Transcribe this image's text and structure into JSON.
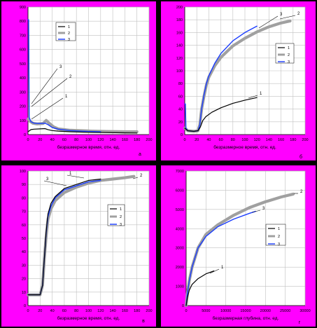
{
  "colors": {
    "panel_bg": "#ff00ff",
    "plot_bg": "#ffffff",
    "grid": "#c0c0c0",
    "axis": "#000000",
    "series_1": "#000000",
    "series_2": "#a0a0a0",
    "series_3": "#1a3cff"
  },
  "chart_data": [
    {
      "id": "a",
      "type": "line",
      "panel_label": "а",
      "xlabel": "безразмерное время, отн. ед.",
      "ylabel": "",
      "x_ticks": [
        0,
        20,
        40,
        60,
        80,
        100,
        120,
        140,
        160,
        180,
        200
      ],
      "y_ticks": [
        0,
        100,
        200,
        300,
        400,
        500,
        600,
        700,
        800,
        900
      ],
      "xlim": [
        0,
        200
      ],
      "ylim": [
        0,
        900
      ],
      "grid": true,
      "legend": {
        "position": "top-center",
        "entries": [
          "1",
          "2",
          "3"
        ]
      },
      "callouts": [
        "3",
        "2",
        "1"
      ],
      "series": [
        {
          "name": "1",
          "points": [
            [
              0,
              20
            ],
            [
              5,
              35
            ],
            [
              10,
              38
            ],
            [
              20,
              40
            ],
            [
              28,
              42
            ],
            [
              33,
              35
            ],
            [
              40,
              28
            ],
            [
              50,
              24
            ],
            [
              70,
              20
            ],
            [
              100,
              16
            ],
            [
              130,
              14
            ],
            [
              160,
              12
            ],
            [
              180,
              11
            ]
          ]
        },
        {
          "name": "2",
          "points": [
            [
              0,
              110
            ],
            [
              3,
              95
            ],
            [
              8,
              80
            ],
            [
              15,
              75
            ],
            [
              25,
              78
            ],
            [
              30,
              100
            ],
            [
              35,
              80
            ],
            [
              42,
              55
            ],
            [
              50,
              40
            ],
            [
              70,
              30
            ],
            [
              100,
              25
            ],
            [
              130,
              22
            ],
            [
              160,
              20
            ],
            [
              180,
              20
            ]
          ]
        },
        {
          "name": "3",
          "points": [
            [
              0,
              810
            ],
            [
              1,
              810
            ],
            [
              2,
              120
            ],
            [
              5,
              90
            ],
            [
              10,
              80
            ],
            [
              20,
              78
            ],
            [
              28,
              80
            ],
            [
              33,
              70
            ],
            [
              40,
              50
            ],
            [
              50,
              38
            ],
            [
              70,
              28
            ],
            [
              100,
              22
            ],
            [
              120,
              20
            ]
          ]
        }
      ]
    },
    {
      "id": "b",
      "type": "line",
      "panel_label": "б",
      "xlabel": "безразмерное время, отн. ед.",
      "ylabel": "",
      "x_ticks": [
        0,
        20,
        40,
        60,
        80,
        100,
        120,
        140,
        160,
        180,
        200
      ],
      "y_ticks": [
        0,
        20,
        40,
        60,
        80,
        100,
        120,
        140,
        160,
        180,
        200
      ],
      "xlim": [
        0,
        200
      ],
      "ylim": [
        0,
        200
      ],
      "grid": true,
      "legend": {
        "position": "right",
        "entries": [
          "1",
          "2",
          "3"
        ]
      },
      "callouts": [
        "3",
        "2",
        "1"
      ],
      "series": [
        {
          "name": "1",
          "points": [
            [
              0,
              10
            ],
            [
              5,
              6
            ],
            [
              15,
              5
            ],
            [
              22,
              6
            ],
            [
              26,
              12
            ],
            [
              30,
              22
            ],
            [
              35,
              28
            ],
            [
              45,
              35
            ],
            [
              60,
              42
            ],
            [
              80,
              49
            ],
            [
              100,
              54
            ],
            [
              120,
              58
            ]
          ]
        },
        {
          "name": "2",
          "points": [
            [
              0,
              10
            ],
            [
              5,
              6
            ],
            [
              15,
              5
            ],
            [
              22,
              6
            ],
            [
              25,
              15
            ],
            [
              28,
              40
            ],
            [
              32,
              60
            ],
            [
              36,
              78
            ],
            [
              40,
              90
            ],
            [
              50,
              108
            ],
            [
              60,
              121
            ],
            [
              80,
              139
            ],
            [
              100,
              151
            ],
            [
              120,
              161
            ],
            [
              140,
              169
            ],
            [
              160,
              175
            ],
            [
              175,
              178
            ]
          ]
        },
        {
          "name": "3",
          "points": [
            [
              0,
              48
            ],
            [
              1,
              48
            ],
            [
              2,
              10
            ],
            [
              5,
              6
            ],
            [
              15,
              5
            ],
            [
              22,
              6
            ],
            [
              25,
              15
            ],
            [
              28,
              40
            ],
            [
              32,
              62
            ],
            [
              36,
              80
            ],
            [
              40,
              92
            ],
            [
              50,
              112
            ],
            [
              60,
              127
            ],
            [
              80,
              147
            ],
            [
              100,
              160
            ],
            [
              120,
              170
            ]
          ]
        }
      ]
    },
    {
      "id": "c",
      "type": "line",
      "panel_label": "в",
      "xlabel": "безразмерное время, отн. ед.",
      "ylabel": "",
      "x_ticks": [
        0,
        20,
        40,
        60,
        80,
        100,
        120,
        140,
        160,
        180,
        200
      ],
      "y_ticks": [
        0,
        10,
        20,
        30,
        40,
        50,
        60,
        70,
        80,
        90,
        100
      ],
      "xlim": [
        0,
        200
      ],
      "ylim": [
        0,
        100
      ],
      "grid": true,
      "legend": {
        "position": "right",
        "entries": [
          "1",
          "2",
          "3"
        ]
      },
      "callouts": [
        "1",
        "3",
        "2"
      ],
      "series": [
        {
          "name": "1",
          "points": [
            [
              0,
              8
            ],
            [
              10,
              8
            ],
            [
              20,
              8
            ],
            [
              24,
              15
            ],
            [
              27,
              35
            ],
            [
              30,
              55
            ],
            [
              33,
              68
            ],
            [
              38,
              76
            ],
            [
              45,
              81
            ],
            [
              60,
              87
            ],
            [
              80,
              90
            ],
            [
              100,
              93
            ],
            [
              120,
              94
            ]
          ]
        },
        {
          "name": "2",
          "points": [
            [
              0,
              8
            ],
            [
              10,
              8
            ],
            [
              20,
              8
            ],
            [
              24,
              15
            ],
            [
              27,
              35
            ],
            [
              30,
              52
            ],
            [
              33,
              64
            ],
            [
              38,
              72
            ],
            [
              45,
              78
            ],
            [
              60,
              84
            ],
            [
              80,
              88
            ],
            [
              100,
              91
            ],
            [
              120,
              93
            ],
            [
              140,
              94
            ],
            [
              160,
              95
            ],
            [
              175,
              96
            ]
          ]
        },
        {
          "name": "3",
          "points": [
            [
              0,
              8
            ],
            [
              10,
              8
            ],
            [
              20,
              8
            ],
            [
              24,
              15
            ],
            [
              27,
              35
            ],
            [
              30,
              54
            ],
            [
              33,
              66
            ],
            [
              38,
              74
            ],
            [
              45,
              80
            ],
            [
              60,
              86
            ],
            [
              80,
              89
            ],
            [
              100,
              92
            ],
            [
              120,
              93
            ]
          ]
        }
      ]
    },
    {
      "id": "d",
      "type": "line",
      "panel_label": "г",
      "xlabel": "безразмерная глубина, отн. ед.",
      "ylabel": "",
      "x_ticks": [
        0,
        5000,
        10000,
        15000,
        20000,
        25000,
        30000
      ],
      "y_ticks": [
        0,
        1000,
        2000,
        3000,
        4000,
        5000,
        6000,
        7000
      ],
      "xlim": [
        0,
        30000
      ],
      "ylim": [
        0,
        7000
      ],
      "grid": true,
      "legend": {
        "position": "right",
        "entries": [
          "1",
          "2",
          "3"
        ]
      },
      "callouts": [
        "2",
        "3",
        "1"
      ],
      "series": [
        {
          "name": "1",
          "points": [
            [
              0,
              0
            ],
            [
              300,
              400
            ],
            [
              800,
              800
            ],
            [
              1500,
              1100
            ],
            [
              3000,
              1400
            ],
            [
              5000,
              1650
            ],
            [
              7000,
              1800
            ]
          ]
        },
        {
          "name": "2",
          "points": [
            [
              0,
              0
            ],
            [
              300,
              600
            ],
            [
              800,
              1300
            ],
            [
              1500,
              2000
            ],
            [
              3000,
              3000
            ],
            [
              5000,
              3700
            ],
            [
              8000,
              4200
            ],
            [
              12000,
              4700
            ],
            [
              16000,
              5100
            ],
            [
              20000,
              5400
            ],
            [
              24000,
              5650
            ],
            [
              27000,
              5800
            ]
          ]
        },
        {
          "name": "3",
          "points": [
            [
              0,
              0
            ],
            [
              300,
              600
            ],
            [
              800,
              1300
            ],
            [
              1500,
              2000
            ],
            [
              3000,
              3000
            ],
            [
              5000,
              3600
            ],
            [
              8000,
              4100
            ],
            [
              12000,
              4500
            ],
            [
              16000,
              4800
            ],
            [
              17500,
              4900
            ]
          ]
        }
      ]
    }
  ]
}
